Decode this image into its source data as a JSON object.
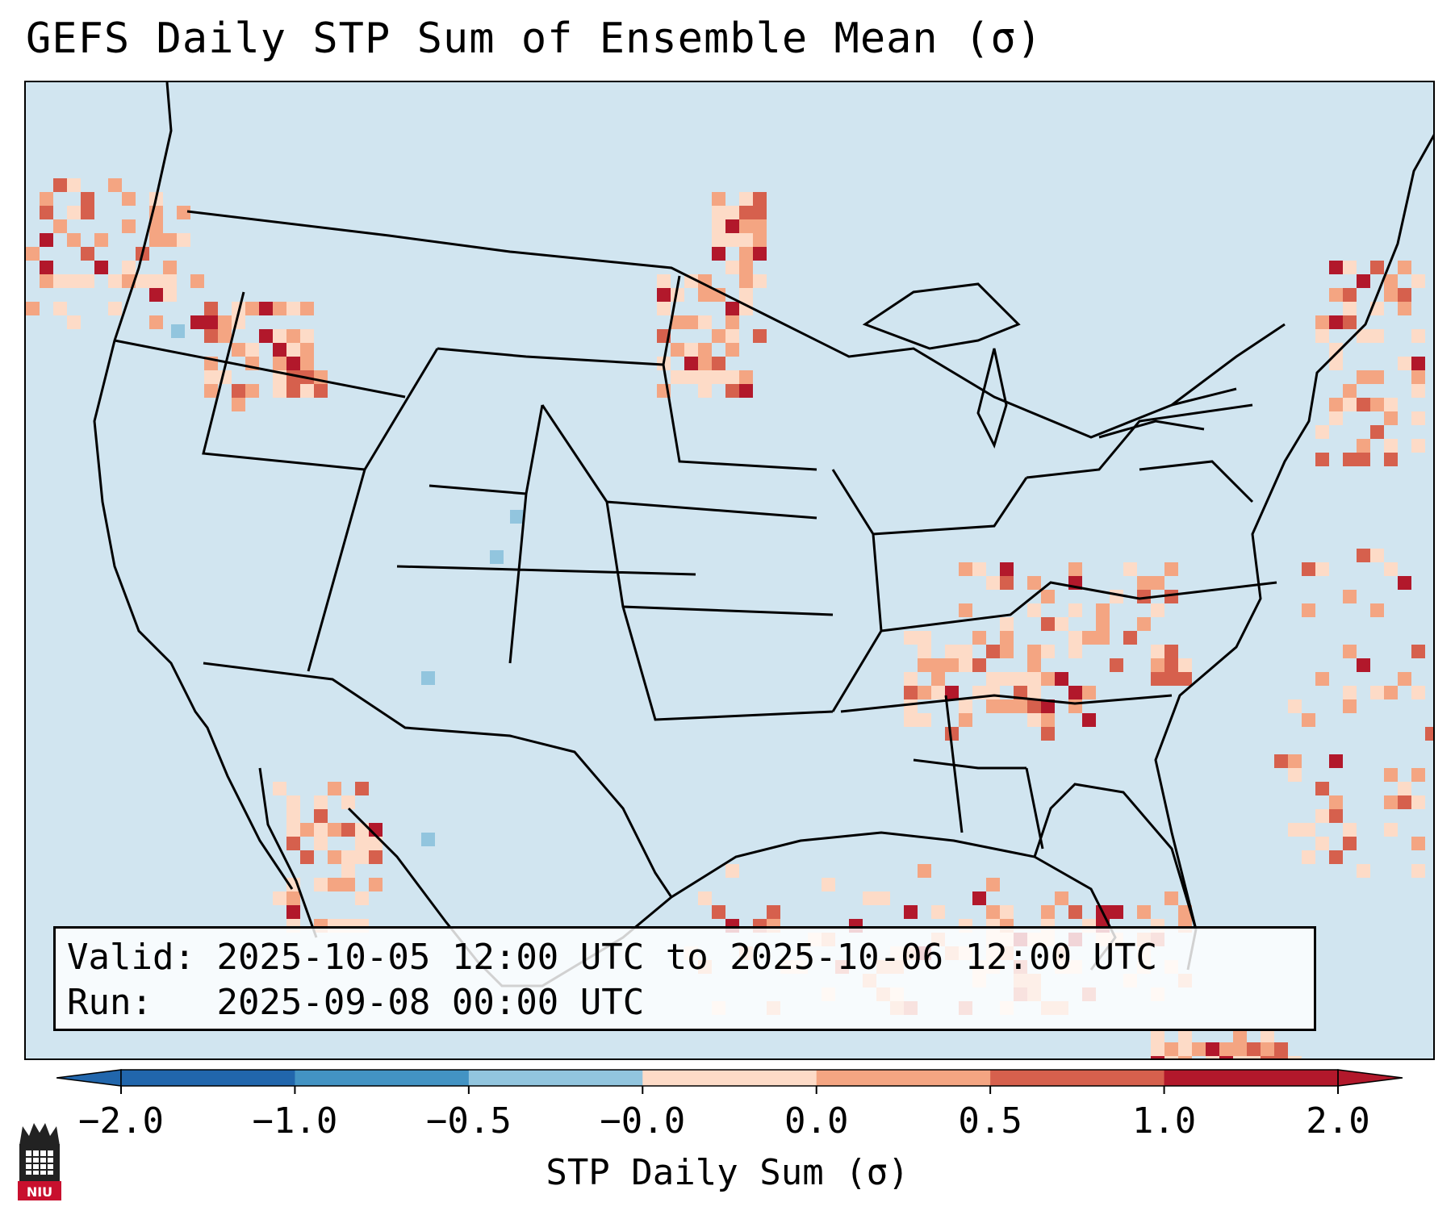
{
  "title": "GEFS Daily STP Sum of Ensemble Mean (σ)",
  "info": {
    "valid_label": "Valid:",
    "valid_value": "2025-10-05 12:00 UTC to 2025-10-06 12:00 UTC",
    "run_label": "Run:",
    "run_value": "2025-09-08 00:00 UTC"
  },
  "colorbar": {
    "label": "STP Daily Sum (σ)",
    "ticks": [
      "−2.0",
      "−1.0",
      "−0.5",
      "−0.0",
      "0.0",
      "0.5",
      "1.0",
      "2.0"
    ],
    "colors": [
      "#2166ac",
      "#4393c3",
      "#92c5de",
      "#d1e5f0",
      "#fddbc7",
      "#f4a582",
      "#d6604d",
      "#b2182b"
    ],
    "background": "#d1e5f0"
  },
  "logo": {
    "text": "NIU",
    "icon": "university-tower-icon"
  }
}
